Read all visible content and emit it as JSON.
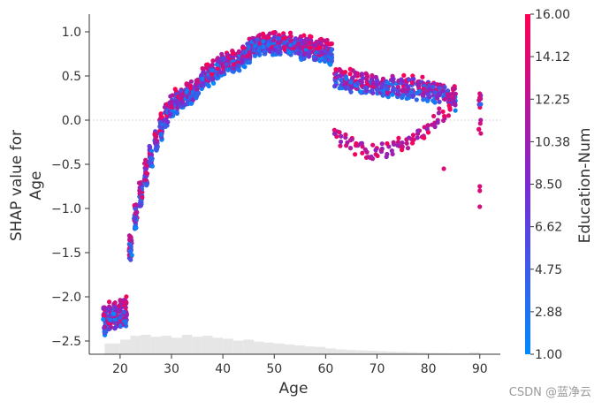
{
  "chart_data": {
    "type": "scatter",
    "title": "",
    "xlabel": "Age",
    "ylabel": "SHAP value for\nAge",
    "ylabel_lines": [
      "SHAP value for",
      "Age"
    ],
    "xlim": [
      14,
      94
    ],
    "ylim": [
      -2.65,
      1.2
    ],
    "x_ticks": [
      20,
      30,
      40,
      50,
      60,
      70,
      80,
      90
    ],
    "y_ticks": [
      1.0,
      0.5,
      0.0,
      -0.5,
      -1.0,
      -1.5,
      -2.0,
      -2.5
    ],
    "y_tick_labels": [
      "1.0",
      "0.5",
      "0.0",
      "−0.5",
      "−1.0",
      "−1.5",
      "−2.0",
      "−2.5"
    ],
    "zero_line": true,
    "colorbar": {
      "label": "Education-Num",
      "min": 1.0,
      "max": 16.0,
      "tick_labels": [
        "16.00",
        "14.12",
        "12.25",
        "10.38",
        "8.50",
        "6.62",
        "4.75",
        "2.88",
        "1.00"
      ],
      "low_color": "#008bfb",
      "mid_color": "#7a2ad3",
      "high_color": "#ff0052"
    },
    "trend": [
      {
        "age": 17,
        "shap": -2.25,
        "spread": 0.14
      },
      {
        "age": 19,
        "shap": -2.22,
        "spread": 0.14
      },
      {
        "age": 21,
        "shap": -2.18,
        "spread": 0.14
      },
      {
        "age": 22,
        "shap": -1.45,
        "spread": 0.13
      },
      {
        "age": 23,
        "shap": -1.1,
        "spread": 0.12
      },
      {
        "age": 24,
        "shap": -0.85,
        "spread": 0.12
      },
      {
        "age": 25,
        "shap": -0.6,
        "spread": 0.12
      },
      {
        "age": 26,
        "shap": -0.4,
        "spread": 0.12
      },
      {
        "age": 27,
        "shap": -0.22,
        "spread": 0.11
      },
      {
        "age": 28,
        "shap": -0.08,
        "spread": 0.11
      },
      {
        "age": 29,
        "shap": 0.05,
        "spread": 0.11
      },
      {
        "age": 30,
        "shap": 0.16,
        "spread": 0.1
      },
      {
        "age": 32,
        "shap": 0.25,
        "spread": 0.1
      },
      {
        "age": 34,
        "shap": 0.32,
        "spread": 0.1
      },
      {
        "age": 36,
        "shap": 0.45,
        "spread": 0.1
      },
      {
        "age": 38,
        "shap": 0.55,
        "spread": 0.1
      },
      {
        "age": 40,
        "shap": 0.63,
        "spread": 0.1
      },
      {
        "age": 42,
        "shap": 0.66,
        "spread": 0.1
      },
      {
        "age": 44,
        "shap": 0.74,
        "spread": 0.1
      },
      {
        "age": 46,
        "shap": 0.84,
        "spread": 0.1
      },
      {
        "age": 48,
        "shap": 0.86,
        "spread": 0.1
      },
      {
        "age": 50,
        "shap": 0.87,
        "spread": 0.1
      },
      {
        "age": 52,
        "shap": 0.85,
        "spread": 0.1
      },
      {
        "age": 54,
        "shap": 0.84,
        "spread": 0.1
      },
      {
        "age": 56,
        "shap": 0.82,
        "spread": 0.1
      },
      {
        "age": 58,
        "shap": 0.8,
        "spread": 0.1
      },
      {
        "age": 60,
        "shap": 0.78,
        "spread": 0.1
      },
      {
        "age": 61,
        "shap": 0.74,
        "spread": 0.1
      },
      {
        "age": 62,
        "shap": 0.48,
        "spread": 0.1
      },
      {
        "age": 65,
        "shap": 0.44,
        "spread": 0.1
      },
      {
        "age": 68,
        "shap": 0.4,
        "spread": 0.1
      },
      {
        "age": 70,
        "shap": 0.38,
        "spread": 0.1
      },
      {
        "age": 72,
        "shap": 0.38,
        "spread": 0.1
      },
      {
        "age": 75,
        "shap": 0.38,
        "spread": 0.1
      },
      {
        "age": 78,
        "shap": 0.36,
        "spread": 0.1
      },
      {
        "age": 80,
        "shap": 0.35,
        "spread": 0.1
      },
      {
        "age": 83,
        "shap": 0.3,
        "spread": 0.1
      },
      {
        "age": 85,
        "shap": 0.25,
        "spread": 0.1
      },
      {
        "age": 90,
        "shap": 0.05,
        "spread": 0.15
      }
    ],
    "lower_branch": [
      {
        "age": 62,
        "shap": -0.2
      },
      {
        "age": 65,
        "shap": -0.28
      },
      {
        "age": 68,
        "shap": -0.35
      },
      {
        "age": 70,
        "shap": -0.38
      },
      {
        "age": 72,
        "shap": -0.33
      },
      {
        "age": 75,
        "shap": -0.25
      },
      {
        "age": 78,
        "shap": -0.18
      },
      {
        "age": 80,
        "shap": -0.1
      },
      {
        "age": 82,
        "shap": 0.05
      },
      {
        "age": 84,
        "shap": 0.1
      }
    ],
    "outliers": [
      {
        "age": 83,
        "shap": -0.55
      },
      {
        "age": 90,
        "shap": -0.75
      },
      {
        "age": 90,
        "shap": -0.8
      },
      {
        "age": 90,
        "shap": -0.98
      },
      {
        "age": 90,
        "shap": 0.3
      }
    ],
    "histogram": {
      "bin_edges_age": [
        17,
        20,
        22,
        24,
        26,
        28,
        30,
        32,
        34,
        36,
        38,
        40,
        42,
        44,
        46,
        48,
        50,
        52,
        54,
        56,
        58,
        60,
        62,
        64,
        66,
        68,
        70,
        72,
        74,
        76,
        78,
        80,
        82,
        84,
        86,
        88,
        90
      ],
      "relative_heights": [
        0.55,
        0.75,
        0.95,
        1.0,
        0.9,
        0.95,
        0.85,
        1.0,
        0.9,
        0.95,
        0.85,
        0.8,
        0.7,
        0.75,
        0.65,
        0.6,
        0.55,
        0.5,
        0.45,
        0.4,
        0.38,
        0.3,
        0.25,
        0.22,
        0.2,
        0.18,
        0.16,
        0.14,
        0.12,
        0.1,
        0.08,
        0.07,
        0.06,
        0.05,
        0.05,
        0.1
      ]
    }
  },
  "watermark": "CSDN @蓝净云"
}
